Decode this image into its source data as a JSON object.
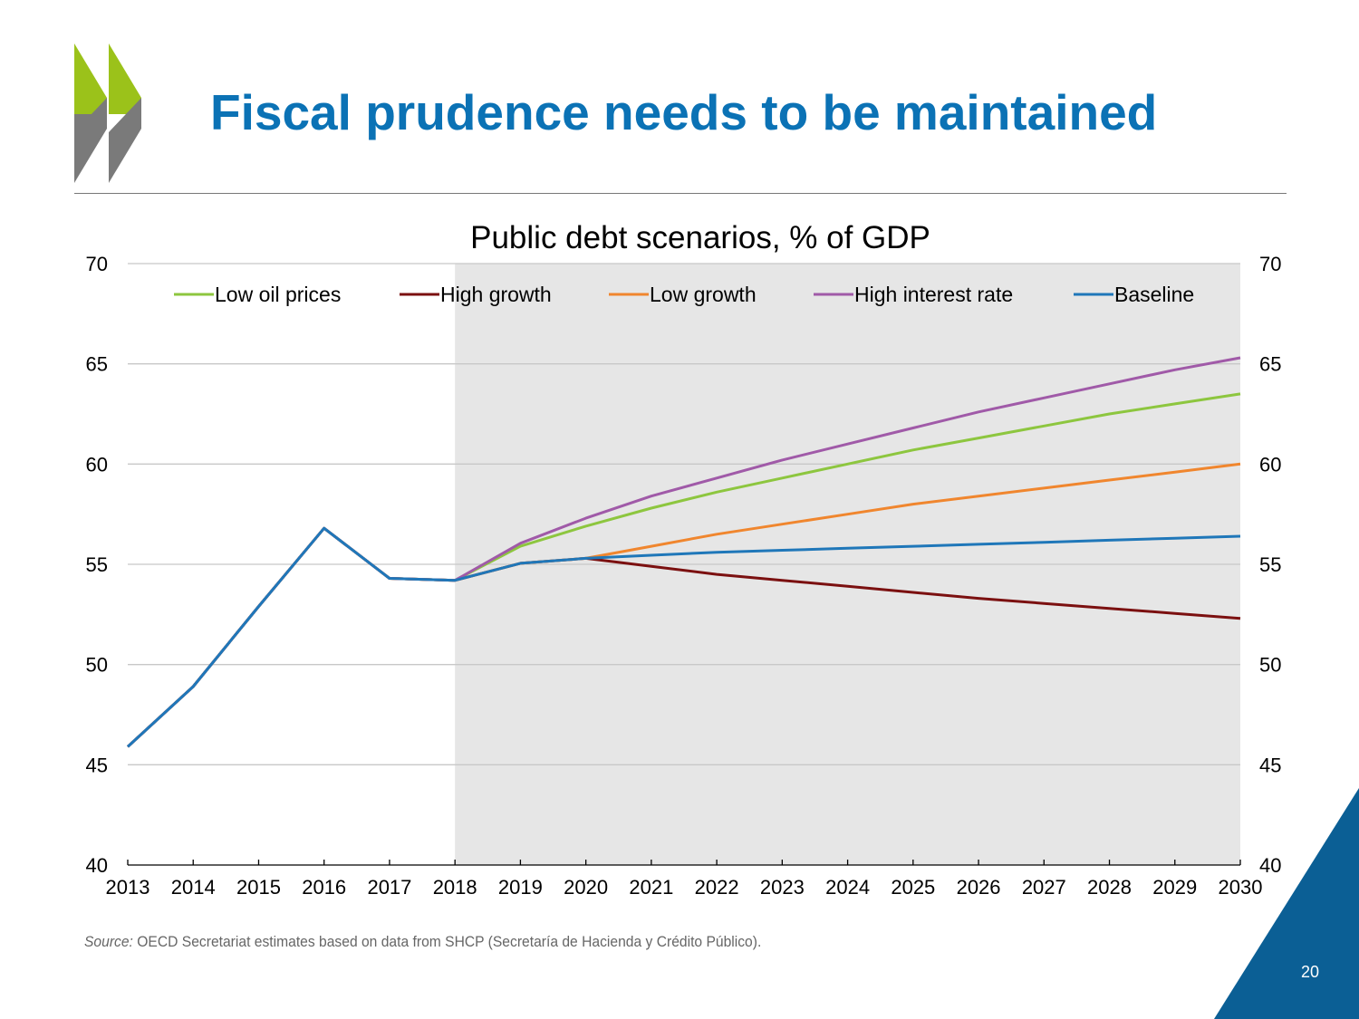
{
  "slide": {
    "title": "Fiscal prudence needs to be maintained",
    "source_label": "Source:",
    "source_text": " OECD Secretariat estimates based on data from SHCP (Secretaría de Hacienda y Crédito Público).",
    "page_number": "20",
    "logo": "OECD chevrons logo",
    "accent_color": "#0b72b5"
  },
  "chart_data": {
    "type": "line",
    "title": "Public debt scenarios, % of GDP",
    "xlabel": "",
    "ylabel": "",
    "x": [
      2013,
      2014,
      2015,
      2016,
      2017,
      2018,
      2019,
      2020,
      2021,
      2022,
      2023,
      2024,
      2025,
      2026,
      2027,
      2028,
      2029,
      2030
    ],
    "ylim": [
      40,
      70
    ],
    "yticks": [
      40,
      45,
      50,
      55,
      60,
      65,
      70
    ],
    "secondary_axis": "right, same scale",
    "grid": true,
    "legend_placement": "top, inside",
    "shaded_projection_range": [
      2018,
      2030
    ],
    "shade_color": "#e6e6e6",
    "series": [
      {
        "name": "Low oil prices",
        "color": "#8dc63f",
        "values": [
          45.9,
          48.9,
          52.9,
          56.8,
          54.3,
          54.2,
          55.9,
          56.9,
          57.8,
          58.6,
          59.3,
          60.0,
          60.7,
          61.3,
          61.9,
          62.5,
          63.0,
          63.5
        ]
      },
      {
        "name": "High growth",
        "color": "#7b1010",
        "values": [
          45.9,
          48.9,
          52.9,
          56.8,
          54.3,
          54.2,
          55.05,
          55.3,
          54.9,
          54.5,
          54.2,
          53.9,
          53.6,
          53.3,
          53.05,
          52.8,
          52.55,
          52.3
        ]
      },
      {
        "name": "Low growth",
        "color": "#f0862e",
        "values": [
          45.9,
          48.9,
          52.9,
          56.8,
          54.3,
          54.2,
          55.05,
          55.3,
          55.9,
          56.5,
          57.0,
          57.5,
          58.0,
          58.4,
          58.8,
          59.2,
          59.6,
          60.0
        ]
      },
      {
        "name": "High interest rate",
        "color": "#a05aa8",
        "values": [
          45.9,
          48.9,
          52.9,
          56.8,
          54.3,
          54.2,
          56.05,
          57.3,
          58.4,
          59.3,
          60.2,
          61.0,
          61.8,
          62.6,
          63.3,
          64.0,
          64.7,
          65.3
        ]
      },
      {
        "name": "Baseline",
        "color": "#1f77b9",
        "values": [
          45.9,
          48.9,
          52.9,
          56.8,
          54.3,
          54.2,
          55.05,
          55.3,
          55.45,
          55.6,
          55.7,
          55.8,
          55.9,
          56.0,
          56.1,
          56.2,
          56.3,
          56.4
        ]
      }
    ]
  }
}
